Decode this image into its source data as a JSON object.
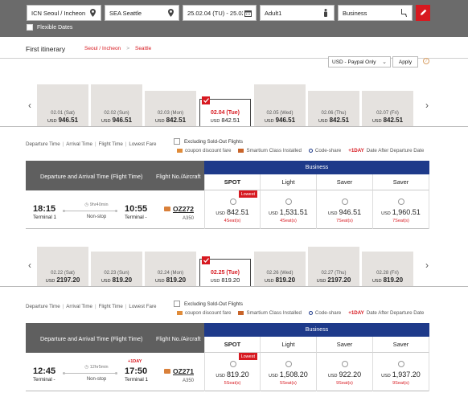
{
  "search": {
    "origin": "ICN Seoul / Incheon",
    "destination": "SEA Seattle",
    "dates": "25.02.04 (TU) - 25.02.25 (T...",
    "passengers": "Adult1",
    "cabin": "Business",
    "flexible_dates_label": "Flexible Dates",
    "flexible_dates_checked": false
  },
  "itinerary": {
    "title": "First itinerary",
    "from": "Seoul / Incheon",
    "to": "Seattle"
  },
  "currency": {
    "selected": "USD - Paypal Only",
    "apply_label": "Apply"
  },
  "outbound": {
    "dates": [
      {
        "date": "02.01 (Sat)",
        "currency": "USD",
        "price": "946.51",
        "level": 1.0,
        "selected": false
      },
      {
        "date": "02.02 (Sun)",
        "currency": "USD",
        "price": "946.51",
        "level": 1.0,
        "selected": false
      },
      {
        "date": "02.03 (Mon)",
        "currency": "USD",
        "price": "842.51",
        "level": 0.85,
        "selected": false
      },
      {
        "date": "02.04 (Tue)",
        "currency": "USD",
        "price": "842.51",
        "level": 0.85,
        "selected": true
      },
      {
        "date": "02.05 (Wed)",
        "currency": "USD",
        "price": "946.51",
        "level": 1.0,
        "selected": false
      },
      {
        "date": "02.06 (Thu)",
        "currency": "USD",
        "price": "842.51",
        "level": 0.85,
        "selected": false
      },
      {
        "date": "02.07 (Fri)",
        "currency": "USD",
        "price": "842.51",
        "level": 0.85,
        "selected": false
      }
    ],
    "flight": {
      "dep_time": "18:15",
      "dep_terminal": "Terminal 1",
      "duration": "9hr40min",
      "stops": "Non-stop",
      "arr_time": "10:55",
      "arr_terminal": "Terminal -",
      "plus_day": "",
      "flight_no": "OZ272",
      "aircraft": "A350"
    },
    "fares": [
      {
        "currency": "USD",
        "price": "842.51",
        "seats": "4Seat(s)",
        "lowest": true
      },
      {
        "currency": "USD",
        "price": "1,531.51",
        "seats": "4Seat(s)",
        "lowest": false
      },
      {
        "currency": "USD",
        "price": "946.51",
        "seats": "7Seat(s)",
        "lowest": false
      },
      {
        "currency": "USD",
        "price": "1,960.51",
        "seats": "7Seat(s)",
        "lowest": false
      }
    ]
  },
  "return": {
    "dates": [
      {
        "date": "02.22 (Sat)",
        "currency": "USD",
        "price": "2197.20",
        "level": 0.95,
        "selected": false
      },
      {
        "date": "02.23 (Sun)",
        "currency": "USD",
        "price": "819.20",
        "level": 0.82,
        "selected": false
      },
      {
        "date": "02.24 (Mon)",
        "currency": "USD",
        "price": "819.20",
        "level": 0.82,
        "selected": false
      },
      {
        "date": "02.25 (Tue)",
        "currency": "USD",
        "price": "819.20",
        "level": 0.82,
        "selected": true
      },
      {
        "date": "02.26 (Wed)",
        "currency": "USD",
        "price": "819.20",
        "level": 0.82,
        "selected": false
      },
      {
        "date": "02.27 (Thu)",
        "currency": "USD",
        "price": "2197.20",
        "level": 0.95,
        "selected": false
      },
      {
        "date": "02.28 (Fri)",
        "currency": "USD",
        "price": "819.20",
        "level": 0.82,
        "selected": false
      }
    ],
    "flight": {
      "dep_time": "12:45",
      "dep_terminal": "Terminal -",
      "duration": "12hr5min",
      "stops": "Non-stop",
      "arr_time": "17:50",
      "arr_terminal": "Terminal 1",
      "plus_day": "+1DAY",
      "flight_no": "OZ271",
      "aircraft": "A350"
    },
    "fares": [
      {
        "currency": "USD",
        "price": "819.20",
        "seats": "5Seat(s)",
        "lowest": true
      },
      {
        "currency": "USD",
        "price": "1,508.20",
        "seats": "5Seat(s)",
        "lowest": false
      },
      {
        "currency": "USD",
        "price": "922.20",
        "seats": "9Seat(s)",
        "lowest": false
      },
      {
        "currency": "USD",
        "price": "1,937.20",
        "seats": "9Seat(s)",
        "lowest": false
      }
    ]
  },
  "filters": {
    "sorts": [
      "Departure Time",
      "Arrival Time",
      "Flight Time",
      "Lowest Fare"
    ],
    "exclude_soldout": "Excluding Sold-Out Flights",
    "coupon": "coupon discount fare",
    "smartium": "Smartium Class Installed",
    "codeshare": "Code-share",
    "plus_day": "+1DAY",
    "plus_day_desc": "Date After Departure Date"
  },
  "table": {
    "col_time": "Departure and Arrival Time (Flight Time)",
    "col_flight": "Flight No./Aircraft",
    "cabin": "Business",
    "fare_types": [
      "SPOT",
      "Light",
      "Saver",
      "Saver"
    ],
    "lowest_label": "Lowest"
  },
  "colors": {
    "brand_red": "#d71920",
    "business_blue": "#1e3a8a",
    "header_gray": "#6b6b6b"
  }
}
